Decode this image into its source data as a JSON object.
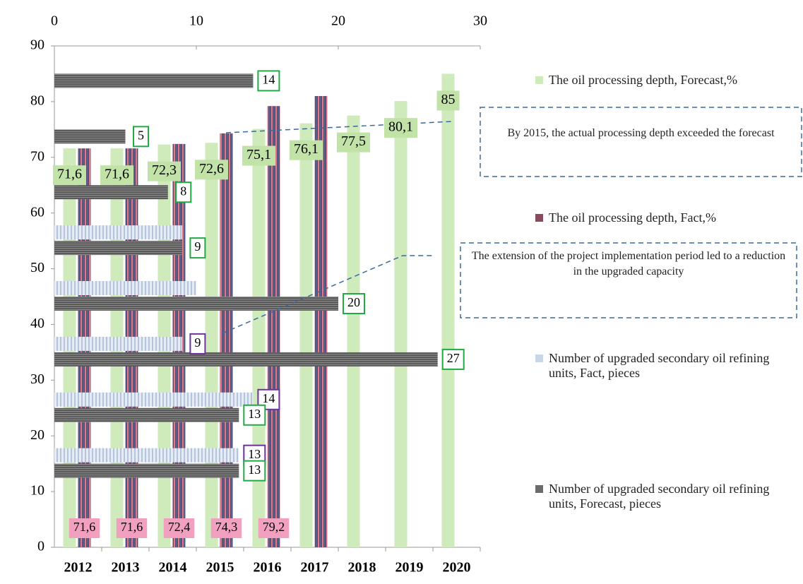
{
  "chart_data": {
    "type": "bar",
    "categories": [
      "2012",
      "2013",
      "2014",
      "2015",
      "2016",
      "2017",
      "2018",
      "2019",
      "2020"
    ],
    "ylim": [
      0,
      90
    ],
    "yticks": [
      0,
      10,
      20,
      30,
      40,
      50,
      60,
      70,
      80,
      90
    ],
    "x2lim": [
      0,
      30
    ],
    "x2ticks": [
      0,
      10,
      20,
      30
    ],
    "y2categories": [
      null,
      null,
      null,
      null,
      null,
      null,
      null,
      null,
      null
    ],
    "series": [
      {
        "name": "The oil processing depth, Forecast,%",
        "color": "#cfeabb",
        "axis": "y",
        "values": [
          71.6,
          71.6,
          72.3,
          72.6,
          75.1,
          76.1,
          77.5,
          80.1,
          85
        ],
        "value_labels": [
          "71,6",
          "71,6",
          "72,3",
          "72,6",
          "75,1",
          "76,1",
          "77,5",
          "80,1",
          "85"
        ]
      },
      {
        "name": "The oil processing depth, Fact,%",
        "color": "#8a4a5c",
        "axis": "y",
        "values": [
          71.6,
          71.6,
          72.4,
          74.3,
          79.2,
          81,
          null,
          null,
          null
        ],
        "value_labels": [
          "71,6",
          "71,6",
          "72,4",
          "74,3",
          "79,2",
          null,
          null,
          null,
          null
        ]
      },
      {
        "name": "Number of upgraded secondary oil refining units, Fact, pieces",
        "color": "#c9d6e8",
        "axis": "x2",
        "values": [
          null,
          13,
          14,
          9,
          10,
          9,
          null,
          null,
          null
        ],
        "value_labels": [
          null,
          "13",
          "14",
          "9",
          null,
          null,
          null,
          null,
          null
        ]
      },
      {
        "name": "Number of upgraded secondary oil refining units, Forecast, pieces",
        "color": "#6b6b6b",
        "axis": "x2",
        "values": [
          null,
          13,
          13,
          27,
          20,
          9,
          8,
          5,
          14
        ],
        "value_labels": [
          null,
          "13",
          "13",
          "27",
          "20",
          "9",
          "8",
          "5",
          "14"
        ]
      }
    ],
    "annotations": [
      "By 2015, the actual processing depth exceeded the forecast",
      "The extension of the project implementation period led to a reduction in the upgraded capacity"
    ]
  }
}
